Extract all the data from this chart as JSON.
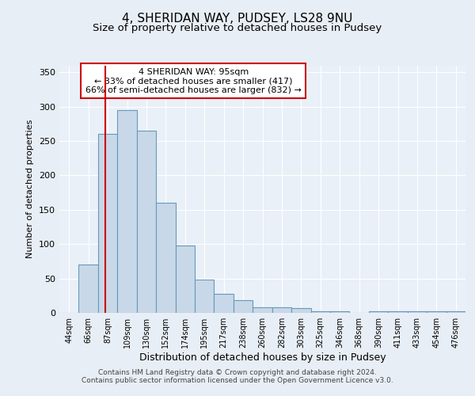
{
  "title1": "4, SHERIDAN WAY, PUDSEY, LS28 9NU",
  "title2": "Size of property relative to detached houses in Pudsey",
  "xlabel": "Distribution of detached houses by size in Pudsey",
  "ylabel": "Number of detached properties",
  "bin_labels": [
    "44sqm",
    "66sqm",
    "87sqm",
    "109sqm",
    "130sqm",
    "152sqm",
    "174sqm",
    "195sqm",
    "217sqm",
    "238sqm",
    "260sqm",
    "282sqm",
    "303sqm",
    "325sqm",
    "346sqm",
    "368sqm",
    "390sqm",
    "411sqm",
    "433sqm",
    "454sqm",
    "476sqm"
  ],
  "bar_heights": [
    0,
    70,
    260,
    295,
    265,
    160,
    98,
    48,
    28,
    19,
    8,
    8,
    7,
    2,
    2,
    0,
    2,
    2,
    2,
    2,
    2
  ],
  "bar_color": "#c8d8e8",
  "bar_edge_color": "#6699bb",
  "bar_edge_width": 0.8,
  "bin_starts": [
    44,
    66,
    87,
    109,
    130,
    152,
    174,
    195,
    217,
    238,
    260,
    282,
    303,
    325,
    346,
    368,
    390,
    411,
    433,
    454,
    476
  ],
  "property_sqm": 95,
  "red_line_color": "#cc0000",
  "ylim": [
    0,
    360
  ],
  "yticks": [
    0,
    50,
    100,
    150,
    200,
    250,
    300,
    350
  ],
  "annotation_text": "4 SHERIDAN WAY: 95sqm\n← 33% of detached houses are smaller (417)\n66% of semi-detached houses are larger (832) →",
  "annotation_box_color": "#ffffff",
  "annotation_border_color": "#cc0000",
  "footer1": "Contains HM Land Registry data © Crown copyright and database right 2024.",
  "footer2": "Contains public sector information licensed under the Open Government Licence v3.0.",
  "bg_color": "#e8eef5",
  "plot_bg_color": "#eaf0f8",
  "grid_color": "#ffffff"
}
